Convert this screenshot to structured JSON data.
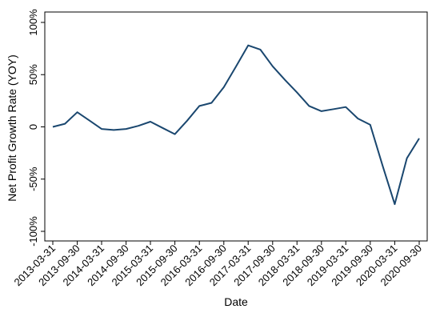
{
  "chart_data": {
    "type": "line",
    "title": "",
    "xlabel": "Date",
    "ylabel": "Net Profit Growth Rate (YOY)",
    "ylim": [
      -100,
      100
    ],
    "yticks": [
      {
        "value": 100,
        "label": "100%"
      },
      {
        "value": 50,
        "label": "50%"
      },
      {
        "value": 0,
        "label": "0"
      },
      {
        "value": -50,
        "label": "-50%"
      },
      {
        "value": -100,
        "label": "-100%"
      }
    ],
    "xticks": [
      "2013-03-31",
      "2013-09-30",
      "2014-03-31",
      "2014-09-30",
      "2015-03-31",
      "2015-09-30",
      "2016-03-31",
      "2016-09-30",
      "2017-03-31",
      "2017-09-30",
      "2018-03-31",
      "2018-09-30",
      "2019-03-31",
      "2019-09-30",
      "2020-03-31",
      "2020-09-30"
    ],
    "grid": false,
    "legend": "none",
    "line_color": "#1a476f",
    "series": [
      {
        "x": [
          "2013-03-31",
          "2013-06-30",
          "2013-09-30",
          "2013-12-31",
          "2014-03-31",
          "2014-06-30",
          "2014-09-30",
          "2014-12-31",
          "2015-03-31",
          "2015-06-30",
          "2015-09-30",
          "2015-12-31",
          "2016-03-31",
          "2016-06-30",
          "2016-09-30",
          "2016-12-31",
          "2017-03-31",
          "2017-06-30",
          "2017-09-30",
          "2017-12-31",
          "2018-03-31",
          "2018-06-30",
          "2018-09-30",
          "2018-12-31",
          "2019-03-31",
          "2019-06-30",
          "2019-09-30",
          "2019-12-31",
          "2020-03-31",
          "2020-06-30",
          "2020-09-30"
        ],
        "values": [
          0,
          3,
          14,
          6,
          -2,
          -3,
          -2,
          1,
          5,
          -1,
          -7,
          6,
          20,
          23,
          38,
          58,
          78,
          74,
          58,
          45,
          33,
          20,
          15,
          17,
          19,
          8,
          2,
          -37,
          -74,
          -30,
          -11
        ]
      }
    ]
  }
}
